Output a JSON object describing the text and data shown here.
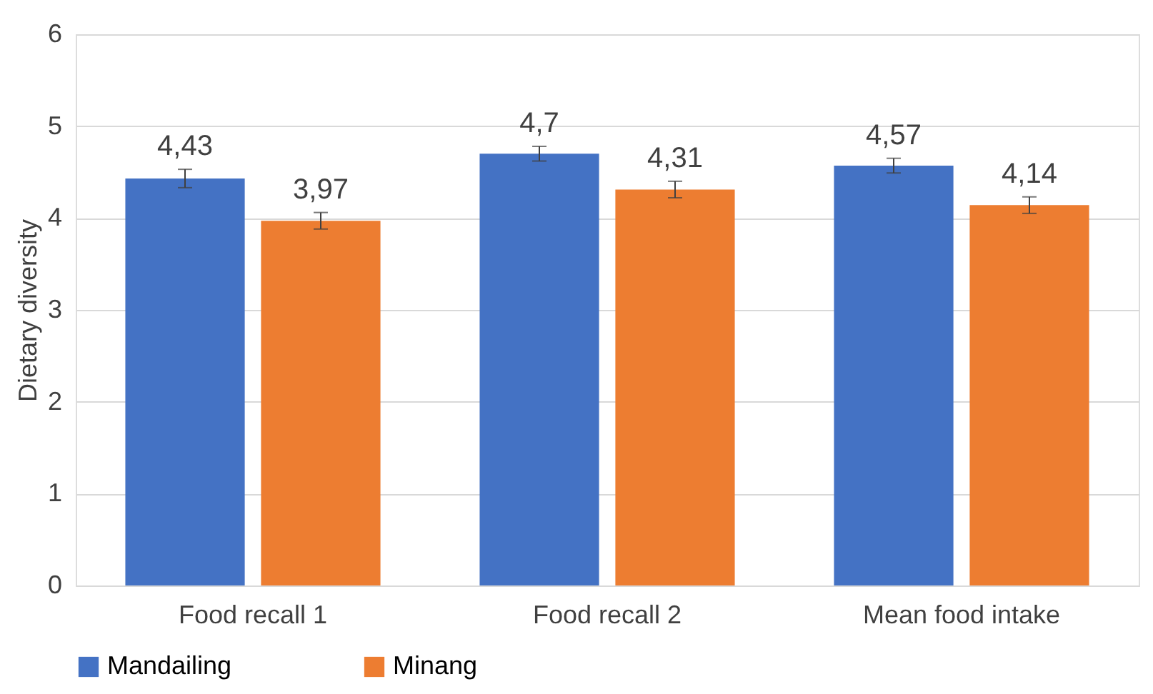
{
  "chart_data": {
    "type": "bar",
    "ylabel": "Dietary diversity",
    "categories": [
      "Food recall 1",
      "Food recall 2",
      "Mean food intake"
    ],
    "series": [
      {
        "name": "Mandailing",
        "color": "#4472c4",
        "values": [
          4.43,
          4.7,
          4.57
        ],
        "errors": [
          0.1,
          0.08,
          0.08
        ],
        "value_labels": [
          "4,43",
          "4,7",
          "4,57"
        ]
      },
      {
        "name": "Minang",
        "color": "#ed7d31",
        "values": [
          3.97,
          4.31,
          4.14
        ],
        "errors": [
          0.09,
          0.09,
          0.09
        ],
        "value_labels": [
          "3,97",
          "4,31",
          "4,14"
        ]
      }
    ],
    "ylim": [
      0,
      6
    ],
    "yticks": [
      0,
      1,
      2,
      3,
      4,
      5,
      6
    ],
    "grid": "y",
    "legend": "bottom"
  }
}
